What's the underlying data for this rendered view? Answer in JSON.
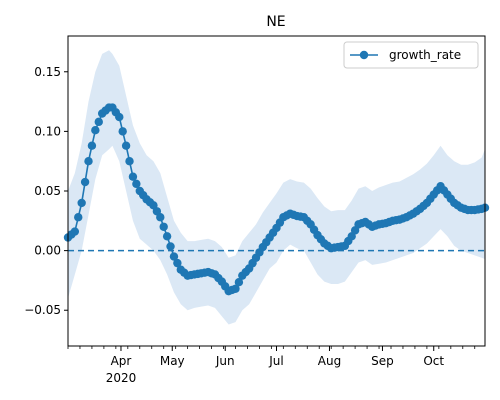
{
  "chart_data": {
    "type": "line",
    "title": "NE",
    "xlabel": "",
    "ylabel": "",
    "xlim": [
      "2020-03-01",
      "2020-10-31"
    ],
    "ylim": [
      -0.08,
      0.18
    ],
    "legend": {
      "position": "top-right",
      "label": "growth_rate"
    },
    "grid": false,
    "y_ticks": [
      {
        "value": 0.15,
        "label": "0.15"
      },
      {
        "value": 0.1,
        "label": "0.10"
      },
      {
        "value": 0.05,
        "label": "0.05"
      },
      {
        "value": 0.0,
        "label": "0.00"
      },
      {
        "value": -0.05,
        "label": "−0.05"
      }
    ],
    "x_ticks": [
      {
        "date": "2020-04-01",
        "label": "Apr",
        "sublabel": "2020"
      },
      {
        "date": "2020-05-01",
        "label": "May"
      },
      {
        "date": "2020-06-01",
        "label": "Jun"
      },
      {
        "date": "2020-07-01",
        "label": "Jul"
      },
      {
        "date": "2020-08-01",
        "label": "Aug"
      },
      {
        "date": "2020-09-01",
        "label": "Sep"
      },
      {
        "date": "2020-10-01",
        "label": "Oct"
      }
    ],
    "reference_line": {
      "y": 0,
      "style": "dashed"
    },
    "colors": {
      "line": "#1f77b4",
      "band": "#dbe8f5"
    },
    "series": [
      {
        "name": "growth_rate",
        "x": [
          "2020-03-01",
          "2020-03-05",
          "2020-03-09",
          "2020-03-13",
          "2020-03-17",
          "2020-03-21",
          "2020-03-25",
          "2020-03-27",
          "2020-03-31",
          "2020-04-04",
          "2020-04-08",
          "2020-04-12",
          "2020-04-16",
          "2020-04-20",
          "2020-04-24",
          "2020-04-28",
          "2020-05-02",
          "2020-05-06",
          "2020-05-10",
          "2020-05-14",
          "2020-05-18",
          "2020-05-22",
          "2020-05-26",
          "2020-05-30",
          "2020-06-03",
          "2020-06-07",
          "2020-06-11",
          "2020-06-15",
          "2020-06-19",
          "2020-06-23",
          "2020-06-27",
          "2020-07-01",
          "2020-07-05",
          "2020-07-09",
          "2020-07-13",
          "2020-07-17",
          "2020-07-21",
          "2020-07-25",
          "2020-07-29",
          "2020-08-02",
          "2020-08-06",
          "2020-08-10",
          "2020-08-14",
          "2020-08-18",
          "2020-08-22",
          "2020-08-26",
          "2020-08-30",
          "2020-09-03",
          "2020-09-07",
          "2020-09-11",
          "2020-09-15",
          "2020-09-19",
          "2020-09-23",
          "2020-09-27",
          "2020-10-01",
          "2020-10-05",
          "2020-10-09",
          "2020-10-13",
          "2020-10-17",
          "2020-10-21",
          "2020-10-25",
          "2020-10-29",
          "2020-10-31"
        ],
        "y": [
          0.011,
          0.016,
          0.04,
          0.075,
          0.101,
          0.115,
          0.12,
          0.12,
          0.112,
          0.088,
          0.062,
          0.05,
          0.043,
          0.038,
          0.028,
          0.012,
          -0.005,
          -0.016,
          -0.021,
          -0.02,
          -0.019,
          -0.018,
          -0.02,
          -0.026,
          -0.034,
          -0.032,
          -0.021,
          -0.015,
          -0.006,
          0.003,
          0.011,
          0.019,
          0.028,
          0.031,
          0.029,
          0.028,
          0.022,
          0.013,
          0.006,
          0.002,
          0.003,
          0.004,
          0.012,
          0.022,
          0.024,
          0.02,
          0.022,
          0.023,
          0.025,
          0.026,
          0.028,
          0.031,
          0.035,
          0.04,
          0.047,
          0.054,
          0.047,
          0.04,
          0.036,
          0.034,
          0.034,
          0.035,
          0.036
        ],
        "lower": [
          -0.04,
          -0.02,
          0.0,
          0.03,
          0.06,
          0.08,
          0.085,
          0.088,
          0.075,
          0.05,
          0.025,
          0.01,
          0.005,
          0.0,
          -0.008,
          -0.02,
          -0.035,
          -0.045,
          -0.05,
          -0.048,
          -0.047,
          -0.046,
          -0.048,
          -0.055,
          -0.062,
          -0.06,
          -0.05,
          -0.045,
          -0.035,
          -0.025,
          -0.015,
          -0.01,
          0.0,
          0.005,
          0.002,
          0.0,
          -0.01,
          -0.02,
          -0.026,
          -0.028,
          -0.028,
          -0.026,
          -0.018,
          -0.01,
          -0.008,
          -0.012,
          -0.011,
          -0.01,
          -0.008,
          -0.006,
          -0.004,
          -0.002,
          0.002,
          0.006,
          0.012,
          0.018,
          0.012,
          0.004,
          0.0,
          -0.002,
          -0.004,
          -0.006,
          -0.007
        ],
        "upper": [
          0.05,
          0.065,
          0.09,
          0.125,
          0.15,
          0.165,
          0.168,
          0.165,
          0.155,
          0.13,
          0.105,
          0.09,
          0.08,
          0.075,
          0.065,
          0.045,
          0.025,
          0.015,
          0.008,
          0.008,
          0.009,
          0.01,
          0.008,
          0.003,
          -0.006,
          -0.004,
          0.008,
          0.015,
          0.022,
          0.032,
          0.04,
          0.048,
          0.057,
          0.06,
          0.058,
          0.057,
          0.052,
          0.044,
          0.037,
          0.033,
          0.034,
          0.034,
          0.042,
          0.052,
          0.054,
          0.05,
          0.053,
          0.055,
          0.057,
          0.058,
          0.061,
          0.064,
          0.068,
          0.073,
          0.08,
          0.088,
          0.08,
          0.075,
          0.072,
          0.072,
          0.074,
          0.078,
          0.085
        ]
      }
    ]
  }
}
